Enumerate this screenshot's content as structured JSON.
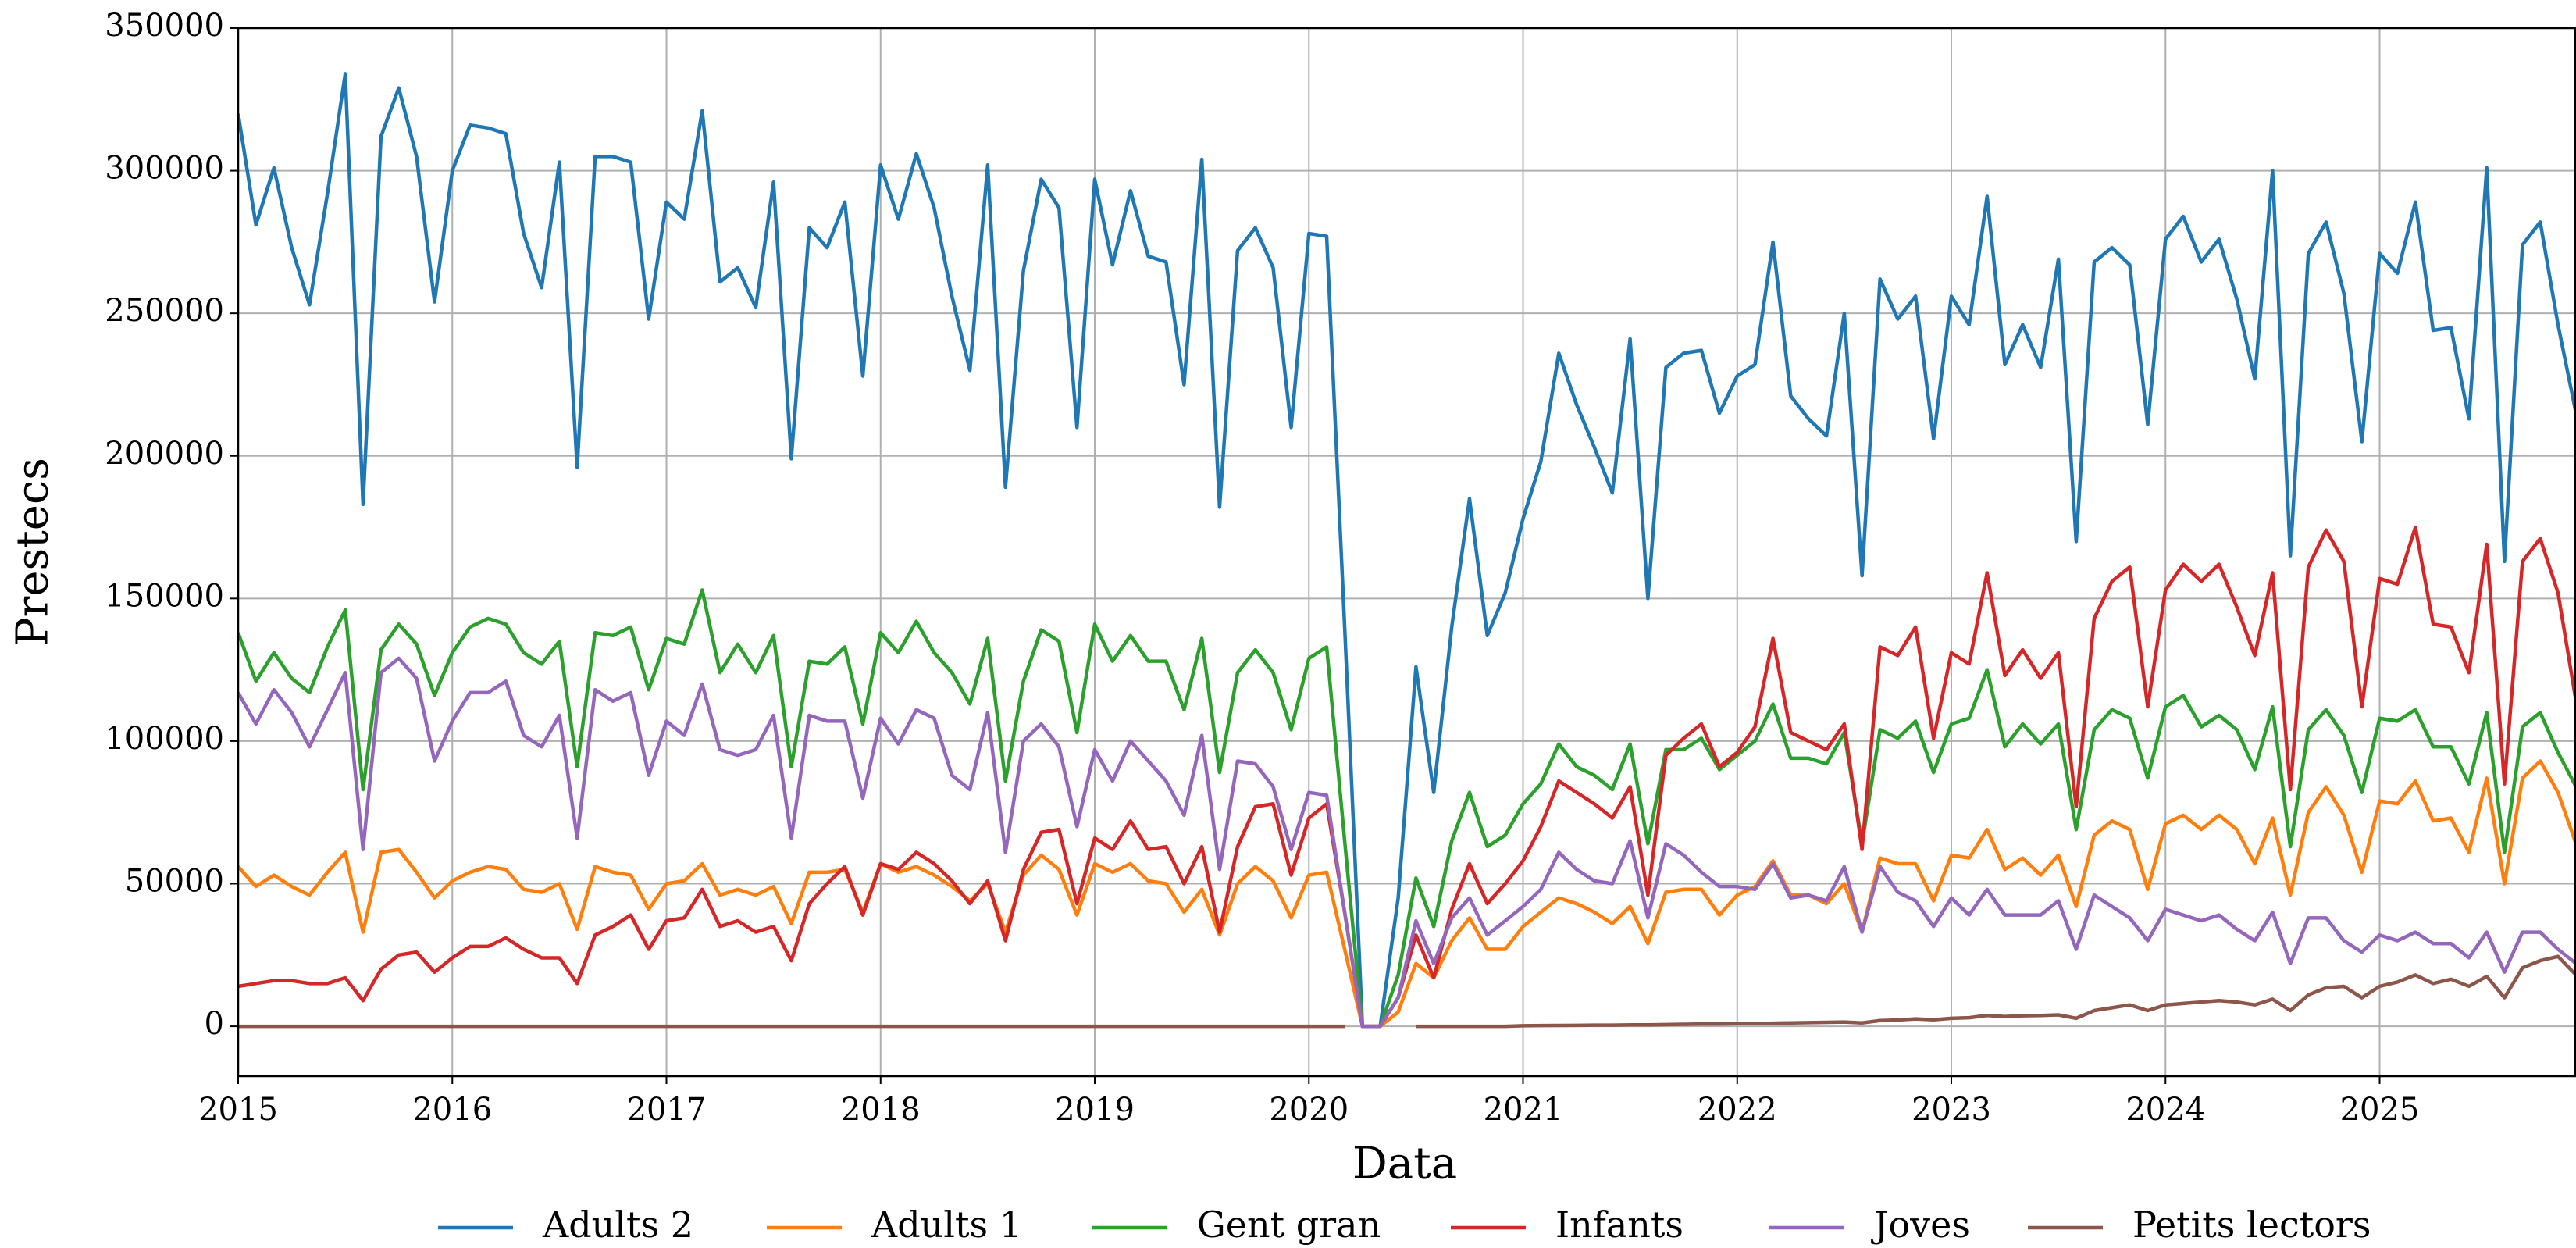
{
  "chart_data": {
    "type": "line",
    "xlabel": "Data",
    "ylabel": "Prestecs",
    "xlim": [
      2015,
      2025.917
    ],
    "ylim": [
      -17500,
      350000
    ],
    "xticks": [
      2015,
      2016,
      2017,
      2018,
      2019,
      2020,
      2021,
      2022,
      2023,
      2024,
      2025
    ],
    "yticks": [
      0,
      50000,
      100000,
      150000,
      200000,
      250000,
      300000,
      350000
    ],
    "grid": true,
    "legend": "bottom",
    "x": [
      2015,
      2015.083,
      2015.167,
      2015.25,
      2015.333,
      2015.417,
      2015.5,
      2015.583,
      2015.667,
      2015.75,
      2015.833,
      2015.917,
      2016,
      2016.083,
      2016.167,
      2016.25,
      2016.333,
      2016.417,
      2016.5,
      2016.583,
      2016.667,
      2016.75,
      2016.833,
      2016.917,
      2017,
      2017.083,
      2017.167,
      2017.25,
      2017.333,
      2017.417,
      2017.5,
      2017.583,
      2017.667,
      2017.75,
      2017.833,
      2017.917,
      2018,
      2018.083,
      2018.167,
      2018.25,
      2018.333,
      2018.417,
      2018.5,
      2018.583,
      2018.667,
      2018.75,
      2018.833,
      2018.917,
      2019,
      2019.083,
      2019.167,
      2019.25,
      2019.333,
      2019.417,
      2019.5,
      2019.583,
      2019.667,
      2019.75,
      2019.833,
      2019.917,
      2020,
      2020.083,
      2020.167,
      2020.25,
      2020.333,
      2020.417,
      2020.5,
      2020.583,
      2020.667,
      2020.75,
      2020.833,
      2020.917,
      2021,
      2021.083,
      2021.167,
      2021.25,
      2021.333,
      2021.417,
      2021.5,
      2021.583,
      2021.667,
      2021.75,
      2021.833,
      2021.917,
      2022,
      2022.083,
      2022.167,
      2022.25,
      2022.333,
      2022.417,
      2022.5,
      2022.583,
      2022.667,
      2022.75,
      2022.833,
      2022.917,
      2023,
      2023.083,
      2023.167,
      2023.25,
      2023.333,
      2023.417,
      2023.5,
      2023.583,
      2023.667,
      2023.75,
      2023.833,
      2023.917,
      2024,
      2024.083,
      2024.167,
      2024.25,
      2024.333,
      2024.417,
      2024.5,
      2024.583,
      2024.667,
      2024.75,
      2024.833,
      2024.917,
      2025,
      2025.083,
      2025.167,
      2025.25,
      2025.333,
      2025.417,
      2025.5,
      2025.583,
      2025.667,
      2025.75,
      2025.833,
      2025.917
    ],
    "series": [
      {
        "name": "Adults 2",
        "color": "#1f77b4",
        "values": [
          320000,
          281000,
          301000,
          273000,
          253000,
          292000,
          334000,
          183000,
          312000,
          329000,
          305000,
          254000,
          300000,
          316000,
          315000,
          313000,
          278000,
          259000,
          303000,
          196000,
          305000,
          305000,
          303000,
          248000,
          289000,
          283000,
          321000,
          261000,
          266000,
          252000,
          296000,
          199000,
          280000,
          273000,
          289000,
          228000,
          302000,
          283000,
          306000,
          287000,
          256000,
          230000,
          302000,
          189000,
          265000,
          297000,
          287000,
          210000,
          297000,
          267000,
          293000,
          270000,
          268000,
          225000,
          304000,
          182000,
          272000,
          280000,
          266000,
          210000,
          278000,
          277000,
          140000,
          0,
          0,
          45000,
          126000,
          82000,
          140000,
          185000,
          137000,
          152000,
          178000,
          198000,
          236000,
          218000,
          203000,
          187000,
          241000,
          150000,
          231000,
          236000,
          237000,
          215000,
          228000,
          232000,
          275000,
          221000,
          213000,
          207000,
          250000,
          158000,
          262000,
          248000,
          256000,
          206000,
          256000,
          246000,
          291000,
          232000,
          246000,
          231000,
          269000,
          170000,
          268000,
          273000,
          267000,
          211000,
          276000,
          284000,
          268000,
          276000,
          255000,
          227000,
          300000,
          165000,
          271000,
          282000,
          257000,
          205000,
          271000,
          264000,
          289000,
          244000,
          245000,
          213000,
          301000,
          163000,
          274000,
          282000,
          246000,
          215000
        ]
      },
      {
        "name": "Adults 1",
        "color": "#ff7f0e",
        "values": [
          56000,
          49000,
          53000,
          49000,
          46000,
          54000,
          61000,
          33000,
          61000,
          62000,
          54000,
          45000,
          51000,
          54000,
          56000,
          55000,
          48000,
          47000,
          50000,
          34000,
          56000,
          54000,
          53000,
          41000,
          50000,
          51000,
          57000,
          46000,
          48000,
          46000,
          49000,
          36000,
          54000,
          54000,
          55000,
          40000,
          57000,
          54000,
          56000,
          53000,
          49000,
          44000,
          50000,
          33000,
          53000,
          60000,
          55000,
          39000,
          57000,
          54000,
          57000,
          51000,
          50000,
          40000,
          48000,
          32000,
          50000,
          56000,
          51000,
          38000,
          53000,
          54000,
          27000,
          0,
          0,
          5000,
          22000,
          17000,
          30000,
          38000,
          27000,
          27000,
          35000,
          40000,
          45000,
          43000,
          40000,
          36000,
          42000,
          29000,
          47000,
          48000,
          48000,
          39000,
          46000,
          49000,
          58000,
          46000,
          46000,
          43000,
          50000,
          33000,
          59000,
          57000,
          57000,
          44000,
          60000,
          59000,
          69000,
          55000,
          59000,
          53000,
          60000,
          42000,
          67000,
          72000,
          69000,
          48000,
          71000,
          74000,
          69000,
          74000,
          69000,
          57000,
          73000,
          46000,
          75000,
          84000,
          74000,
          54000,
          79000,
          78000,
          86000,
          72000,
          73000,
          61000,
          87000,
          50000,
          87000,
          93000,
          82000,
          64000
        ]
      },
      {
        "name": "Gent gran",
        "color": "#2ca02c",
        "values": [
          138000,
          121000,
          131000,
          122000,
          117000,
          133000,
          146000,
          83000,
          132000,
          141000,
          134000,
          116000,
          131000,
          140000,
          143000,
          141000,
          131000,
          127000,
          135000,
          91000,
          138000,
          137000,
          140000,
          118000,
          136000,
          134000,
          153000,
          124000,
          134000,
          124000,
          137000,
          91000,
          128000,
          127000,
          133000,
          106000,
          138000,
          131000,
          142000,
          131000,
          124000,
          113000,
          136000,
          86000,
          121000,
          139000,
          135000,
          103000,
          141000,
          128000,
          137000,
          128000,
          128000,
          111000,
          136000,
          89000,
          124000,
          132000,
          124000,
          104000,
          129000,
          133000,
          65000,
          0,
          0,
          18000,
          52000,
          35000,
          65000,
          82000,
          63000,
          67000,
          78000,
          85000,
          99000,
          91000,
          88000,
          83000,
          99000,
          64000,
          97000,
          97000,
          101000,
          90000,
          95000,
          100000,
          113000,
          94000,
          94000,
          92000,
          103000,
          64000,
          104000,
          101000,
          107000,
          89000,
          106000,
          108000,
          125000,
          98000,
          106000,
          99000,
          106000,
          69000,
          104000,
          111000,
          108000,
          87000,
          112000,
          116000,
          105000,
          109000,
          104000,
          90000,
          112000,
          63000,
          104000,
          111000,
          102000,
          82000,
          108000,
          107000,
          111000,
          98000,
          98000,
          85000,
          110000,
          61000,
          105000,
          110000,
          96000,
          84000
        ]
      },
      {
        "name": "Infants",
        "color": "#d62728",
        "values": [
          14000,
          15000,
          16000,
          16000,
          15000,
          15000,
          17000,
          9000,
          20000,
          25000,
          26000,
          19000,
          24000,
          28000,
          28000,
          31000,
          27000,
          24000,
          24000,
          15000,
          32000,
          35000,
          39000,
          27000,
          37000,
          38000,
          48000,
          35000,
          37000,
          33000,
          35000,
          23000,
          43000,
          50000,
          56000,
          39000,
          57000,
          55000,
          61000,
          57000,
          51000,
          43000,
          51000,
          30000,
          55000,
          68000,
          69000,
          43000,
          66000,
          62000,
          72000,
          62000,
          63000,
          50000,
          63000,
          33000,
          63000,
          77000,
          78000,
          53000,
          73000,
          78000,
          40000,
          0,
          0,
          10000,
          32000,
          17000,
          41000,
          57000,
          43000,
          50000,
          58000,
          70000,
          86000,
          82000,
          78000,
          73000,
          84000,
          46000,
          95000,
          101000,
          106000,
          91000,
          96000,
          105000,
          136000,
          103000,
          100000,
          97000,
          106000,
          62000,
          133000,
          130000,
          140000,
          101000,
          131000,
          127000,
          159000,
          123000,
          132000,
          122000,
          131000,
          77000,
          143000,
          156000,
          161000,
          112000,
          153000,
          162000,
          156000,
          162000,
          147000,
          130000,
          159000,
          83000,
          161000,
          174000,
          163000,
          112000,
          157000,
          155000,
          175000,
          141000,
          140000,
          124000,
          169000,
          85000,
          163000,
          171000,
          152000,
          114000
        ]
      },
      {
        "name": "Joves",
        "color": "#9467bd",
        "values": [
          117000,
          106000,
          118000,
          110000,
          98000,
          111000,
          124000,
          62000,
          124000,
          129000,
          122000,
          93000,
          107000,
          117000,
          117000,
          121000,
          102000,
          98000,
          109000,
          66000,
          118000,
          114000,
          117000,
          88000,
          107000,
          102000,
          120000,
          97000,
          95000,
          97000,
          109000,
          66000,
          109000,
          107000,
          107000,
          80000,
          108000,
          99000,
          111000,
          108000,
          88000,
          83000,
          110000,
          61000,
          100000,
          106000,
          98000,
          70000,
          97000,
          86000,
          100000,
          93000,
          86000,
          74000,
          102000,
          55000,
          93000,
          92000,
          84000,
          62000,
          82000,
          81000,
          40000,
          0,
          0,
          10000,
          37000,
          22000,
          38000,
          45000,
          32000,
          37000,
          42000,
          48000,
          61000,
          55000,
          51000,
          50000,
          65000,
          38000,
          64000,
          60000,
          54000,
          49000,
          49000,
          48000,
          57000,
          45000,
          46000,
          44000,
          56000,
          33000,
          56000,
          47000,
          44000,
          35000,
          45000,
          39000,
          48000,
          39000,
          39000,
          39000,
          44000,
          27000,
          46000,
          42000,
          38000,
          30000,
          41000,
          39000,
          37000,
          39000,
          34000,
          30000,
          40000,
          22000,
          38000,
          38000,
          30000,
          26000,
          32000,
          30000,
          33000,
          29000,
          29000,
          24000,
          33000,
          19000,
          33000,
          33000,
          27000,
          22000
        ]
      },
      {
        "name": "Petits lectors",
        "color": "#8c564b",
        "values": [
          0,
          0,
          0,
          0,
          0,
          0,
          0,
          0,
          0,
          0,
          0,
          0,
          0,
          0,
          0,
          0,
          0,
          0,
          0,
          0,
          0,
          0,
          0,
          0,
          0,
          0,
          0,
          0,
          0,
          0,
          0,
          0,
          0,
          0,
          0,
          0,
          0,
          0,
          0,
          0,
          0,
          0,
          0,
          0,
          0,
          0,
          0,
          0,
          0,
          0,
          0,
          0,
          0,
          0,
          0,
          0,
          0,
          0,
          0,
          0,
          0,
          0,
          0,
          null,
          null,
          null,
          0,
          0,
          0,
          0,
          0,
          0,
          200,
          250,
          300,
          350,
          400,
          400,
          500,
          500,
          600,
          700,
          800,
          800,
          900,
          1000,
          1100,
          1200,
          1300,
          1400,
          1500,
          1200,
          2000,
          2200,
          2600,
          2300,
          2800,
          3000,
          3800,
          3400,
          3700,
          3800,
          4000,
          2800,
          5500,
          6500,
          7500,
          5500,
          7500,
          8000,
          8500,
          9000,
          8500,
          7500,
          9500,
          5500,
          11000,
          13500,
          14000,
          10000,
          14000,
          15500,
          18000,
          15000,
          16500,
          14000,
          17500,
          10000,
          20500,
          23000,
          24500,
          18000
        ]
      }
    ]
  }
}
